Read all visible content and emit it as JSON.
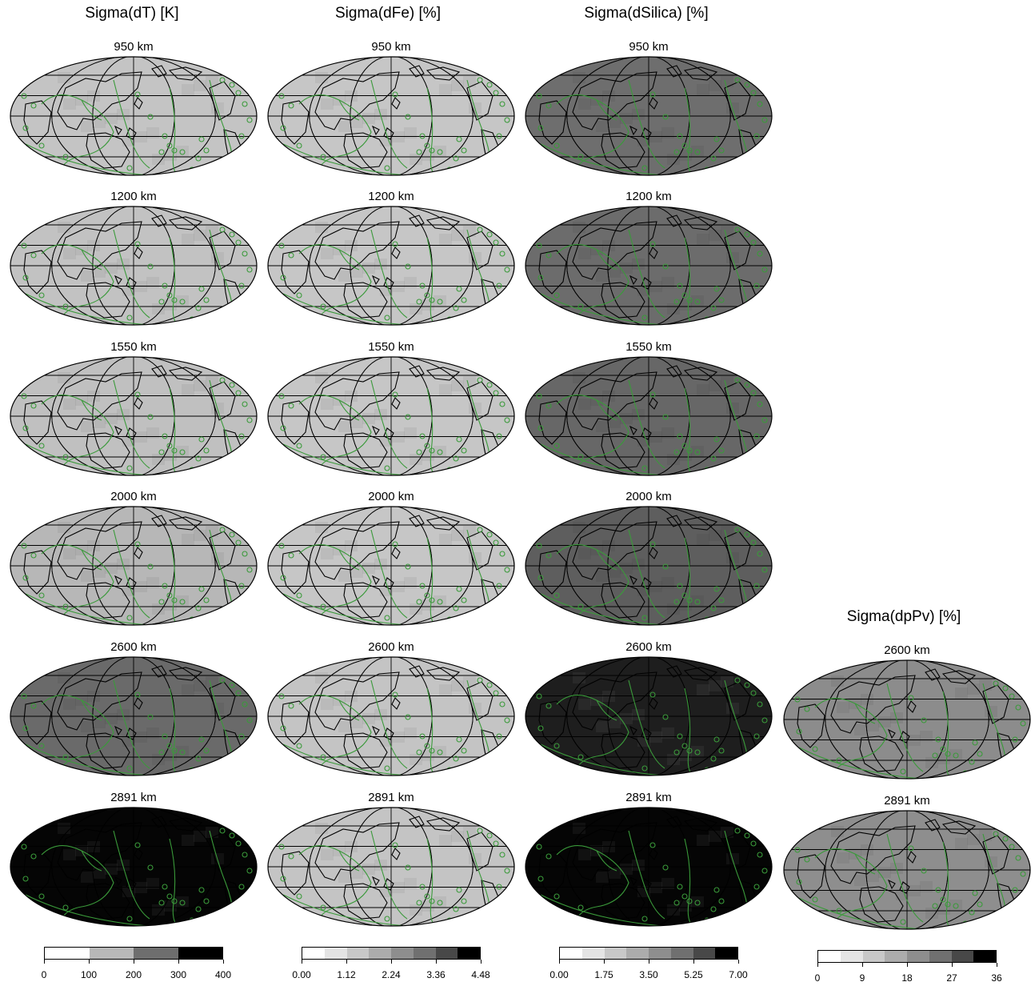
{
  "columns": [
    {
      "title": "Sigma(dT) [K]",
      "depths": [
        {
          "label": "950 km",
          "gray": "#c4c4c4"
        },
        {
          "label": "1200 km",
          "gray": "#c2c2c2"
        },
        {
          "label": "1550 km",
          "gray": "#c0c0c0"
        },
        {
          "label": "2000 km",
          "gray": "#b7b7b7"
        },
        {
          "label": "2600 km",
          "gray": "#6a6a6a"
        },
        {
          "label": "2891 km",
          "gray": "#050505"
        }
      ]
    },
    {
      "title": "Sigma(dFe) [%]",
      "depths": [
        {
          "label": "950 km",
          "gray": "#c6c6c6"
        },
        {
          "label": "1200 km",
          "gray": "#c6c6c6"
        },
        {
          "label": "1550 km",
          "gray": "#c6c6c6"
        },
        {
          "label": "2000 km",
          "gray": "#c6c6c6"
        },
        {
          "label": "2600 km",
          "gray": "#c4c4c4"
        },
        {
          "label": "2891 km",
          "gray": "#c4c4c4"
        }
      ]
    },
    {
      "title": "Sigma(dSilica) [%]",
      "depths": [
        {
          "label": "950 km",
          "gray": "#6e6e6e"
        },
        {
          "label": "1200 km",
          "gray": "#6c6c6c"
        },
        {
          "label": "1550 km",
          "gray": "#676767"
        },
        {
          "label": "2000 km",
          "gray": "#5e5e5e"
        },
        {
          "label": "2600 km",
          "gray": "#1e1e1e"
        },
        {
          "label": "2891 km",
          "gray": "#050505"
        }
      ]
    },
    {
      "title": "Sigma(dpPv) [%]",
      "depths": [
        {
          "label": "2600 km",
          "gray": "#8c8c8c"
        },
        {
          "label": "2891 km",
          "gray": "#8e8e8e"
        }
      ]
    }
  ],
  "colorbars": [
    {
      "ticks": [
        "0",
        "100",
        "200",
        "300",
        "400"
      ],
      "colors": [
        "#ffffff",
        "#b8b8b8",
        "#6e6e6e",
        "#000000"
      ]
    },
    {
      "ticks": [
        "0.00",
        "1.12",
        "2.24",
        "3.36",
        "4.48"
      ],
      "colors": [
        "#ffffff",
        "#e4e4e4",
        "#c8c8c8",
        "#acacac",
        "#8e8e8e",
        "#707070",
        "#484848",
        "#000000"
      ]
    },
    {
      "ticks": [
        "0.00",
        "1.75",
        "3.50",
        "5.25",
        "7.00"
      ],
      "colors": [
        "#ffffff",
        "#e4e4e4",
        "#c8c8c8",
        "#acacac",
        "#8e8e8e",
        "#707070",
        "#484848",
        "#000000"
      ]
    },
    {
      "ticks": [
        "0",
        "9",
        "18",
        "27",
        "36"
      ],
      "colors": [
        "#ffffff",
        "#e4e4e4",
        "#c8c8c8",
        "#acacac",
        "#8e8e8e",
        "#707070",
        "#484848",
        "#000000"
      ]
    }
  ],
  "colors": {
    "plate_boundary": "#3a9a3a",
    "coastline": "#000000",
    "hotspot": "#3a9a3a"
  }
}
